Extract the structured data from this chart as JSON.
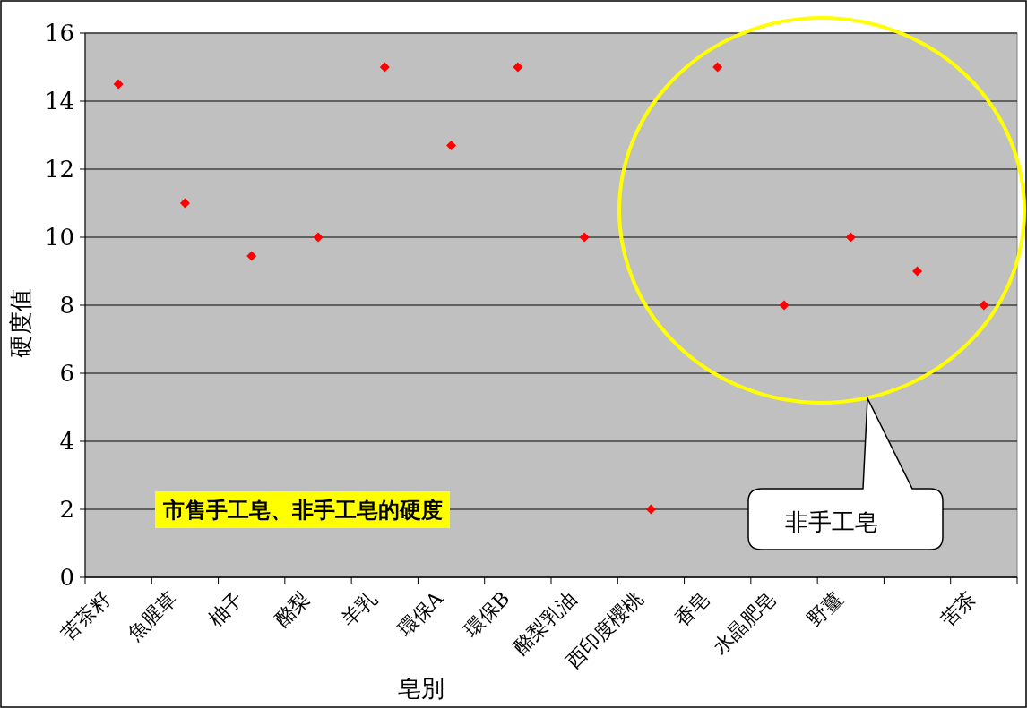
{
  "chart_data": {
    "type": "scatter",
    "xlabel": "皂別",
    "ylabel": "硬度值",
    "categories": [
      "苦茶籽",
      "魚腥草",
      "柚子",
      "酪梨",
      "羊乳",
      "環保A",
      "環保B",
      "酪梨乳油",
      "西印度櫻桃",
      "香皂",
      "水晶肥皂",
      "野薑",
      null,
      "苦茶"
    ],
    "series": [
      {
        "color": "#ff0000",
        "values": [
          14.5,
          11,
          9.45,
          10,
          15,
          12.7,
          15,
          10,
          2,
          15,
          8,
          10,
          9,
          8
        ]
      }
    ],
    "ylim": [
      0,
      16
    ],
    "yticks": [
      0,
      2,
      4,
      6,
      8,
      10,
      12,
      14,
      16
    ],
    "grid": "y",
    "marker": "diamond",
    "annotations": [
      "市售手工皂、非手工皂的硬度",
      "非手工皂"
    ]
  }
}
